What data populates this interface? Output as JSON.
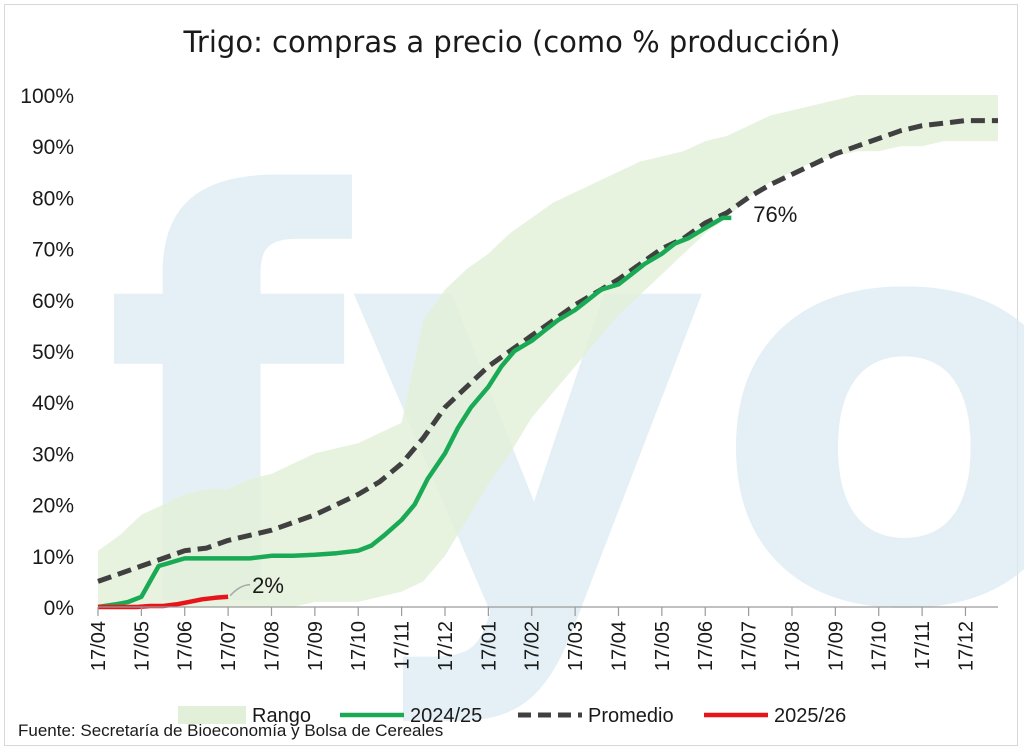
{
  "chart_data": {
    "type": "line",
    "title": "Trigo: compras a precio (como % producción)",
    "xlabel": "",
    "ylabel": "",
    "x_tick_labels": [
      "17/04",
      "17/05",
      "17/06",
      "17/07",
      "17/08",
      "17/09",
      "17/10",
      "17/11",
      "17/12",
      "17/01",
      "17/02",
      "17/03",
      "17/04",
      "17/05",
      "17/06",
      "17/07",
      "17/08",
      "17/09",
      "17/10",
      "17/11",
      "17/12"
    ],
    "y_tick_labels": [
      "0%",
      "10%",
      "20%",
      "30%",
      "40%",
      "50%",
      "60%",
      "70%",
      "80%",
      "90%",
      "100%"
    ],
    "ylim": [
      0,
      100
    ],
    "x_unit": "months since 17/04",
    "xlim": [
      0,
      20.75
    ],
    "legend_position": "bottom",
    "colors": {
      "range": "#e3f0d9",
      "series_2024_25": "#1aaa55",
      "promedio": "#404040",
      "series_2025_26": "#e8141b",
      "watermark": "#dbebf2"
    },
    "range_band": {
      "name": "Rango",
      "x": [
        0,
        0.5,
        1,
        1.5,
        2,
        2.5,
        3,
        3.5,
        4,
        4.5,
        5,
        5.5,
        6,
        6.5,
        7,
        7.5,
        8,
        8.5,
        9,
        9.5,
        10,
        10.5,
        11,
        11.5,
        12,
        12.5,
        13,
        13.5,
        14,
        14.5,
        15,
        15.5,
        16,
        16.5,
        17,
        17.5,
        18,
        18.5,
        19,
        19.5,
        20,
        20.75
      ],
      "low": [
        0,
        0,
        0,
        0,
        0,
        0,
        0,
        0,
        0,
        0,
        1,
        1,
        1,
        2,
        3,
        5,
        10,
        17,
        24,
        30,
        37,
        42,
        47,
        52,
        57,
        61,
        65,
        69,
        73,
        76,
        80,
        83,
        85,
        87,
        88,
        89,
        89,
        90,
        90,
        91,
        91,
        91
      ],
      "high": [
        11,
        14,
        18,
        20,
        22,
        23,
        23,
        25,
        26,
        28,
        30,
        31,
        32,
        34,
        36,
        56,
        62,
        66,
        69,
        73,
        76,
        79,
        81,
        83,
        85,
        87,
        88,
        89,
        91,
        92,
        94,
        96,
        97,
        98,
        99,
        100,
        100,
        100,
        100,
        100,
        100,
        100
      ]
    },
    "series": [
      {
        "name": "2024/25",
        "x": [
          0,
          0.4,
          0.7,
          1,
          1.2,
          1.4,
          1.6,
          1.8,
          2,
          2.5,
          3,
          3.5,
          4,
          4.5,
          5,
          5.5,
          6,
          6.3,
          6.6,
          7,
          7.3,
          7.6,
          8,
          8.3,
          8.6,
          9,
          9.3,
          9.6,
          10,
          10.3,
          10.6,
          11,
          11.3,
          11.6,
          12,
          12.3,
          12.6,
          13,
          13.3,
          13.6,
          14,
          14.2,
          14.4,
          14.6
        ],
        "values": [
          0,
          0.5,
          1,
          2,
          5,
          8,
          8.5,
          9,
          9.5,
          9.5,
          9.5,
          9.5,
          10,
          10,
          10.2,
          10.5,
          11,
          12,
          14,
          17,
          20,
          25,
          30,
          35,
          39,
          43,
          47,
          50,
          52,
          54,
          56,
          58,
          60,
          62,
          63,
          65,
          67,
          69,
          71,
          72,
          74,
          75,
          76,
          76
        ]
      },
      {
        "name": "Promedio",
        "x": [
          0,
          0.5,
          1,
          1.5,
          2,
          2.5,
          3,
          3.5,
          4,
          4.5,
          5,
          5.5,
          6,
          6.5,
          7,
          7.5,
          8,
          8.5,
          9,
          9.5,
          10,
          10.5,
          11,
          11.5,
          12,
          12.5,
          13,
          13.5,
          14,
          14.5,
          15,
          15.5,
          16,
          16.5,
          17,
          17.5,
          18,
          18.5,
          19,
          19.5,
          20,
          20.75
        ],
        "values": [
          5,
          6.5,
          8,
          9.5,
          11,
          11.5,
          13,
          14,
          15,
          16.5,
          18,
          20,
          22,
          24.5,
          28,
          33,
          39,
          43,
          47,
          50,
          53,
          56,
          59,
          61.5,
          64,
          67,
          70,
          72,
          75,
          77,
          80,
          82.5,
          84.5,
          86.5,
          88.5,
          90,
          91.5,
          93,
          94,
          94.5,
          95,
          95
        ]
      },
      {
        "name": "2025/26",
        "x": [
          0,
          0.3,
          0.6,
          0.9,
          1.2,
          1.5,
          1.8,
          2.1,
          2.4,
          2.7,
          3
        ],
        "values": [
          0,
          0,
          0,
          0,
          0.2,
          0.2,
          0.5,
          1,
          1.5,
          1.8,
          2
        ]
      }
    ],
    "annotations": [
      {
        "text": "76%",
        "series": "2024/25",
        "x": 14.6,
        "y": 76
      },
      {
        "text": "2%",
        "series": "2025/26",
        "x": 3,
        "y": 2
      }
    ],
    "source": "Fuente: Secretaría de Bioeconomía y Bolsa de Cereales",
    "watermark": "fyo"
  }
}
